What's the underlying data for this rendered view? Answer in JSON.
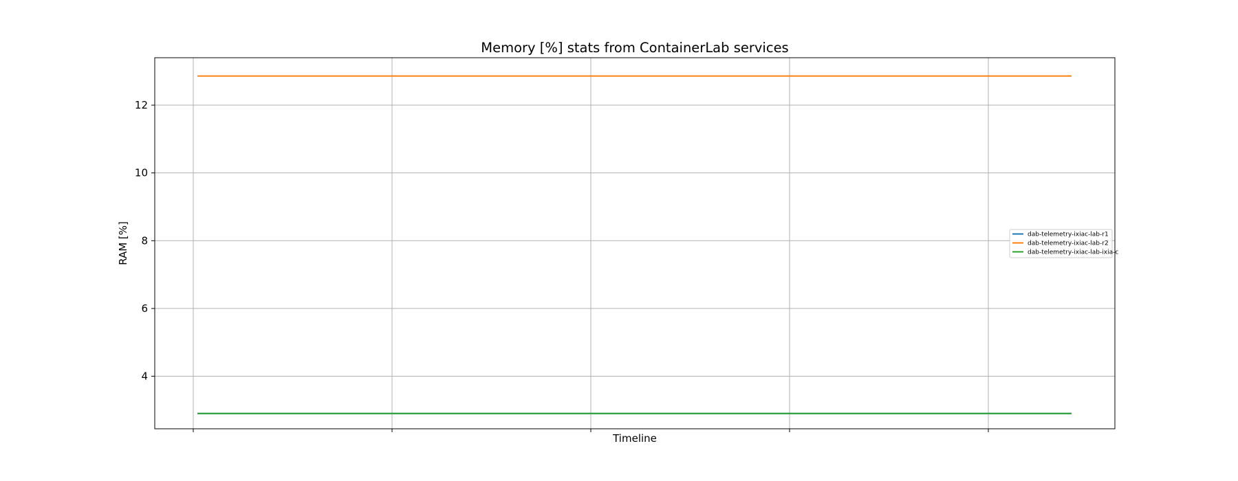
{
  "chart_data": {
    "type": "line",
    "title": "Memory [%] stats from ContainerLab services",
    "xlabel": "Timeline",
    "ylabel": "RAM [%]",
    "ylim": [
      2.45,
      13.4
    ],
    "yticks": [
      4,
      6,
      8,
      10,
      12
    ],
    "x_ticks_count": 5,
    "grid": true,
    "legend_position": "center-right",
    "series": [
      {
        "name": "dab-telemetry-ixiac-lab-r1",
        "color": "#1f77b4",
        "values": [
          2.9,
          2.9
        ]
      },
      {
        "name": "dab-telemetry-ixiac-lab-r2",
        "color": "#ff7f0e",
        "values": [
          12.86,
          12.86
        ]
      },
      {
        "name": "dab-telemetry-ixiac-lab-ixia-c",
        "color": "#2ca02c",
        "values": [
          2.9,
          2.9
        ]
      }
    ]
  }
}
